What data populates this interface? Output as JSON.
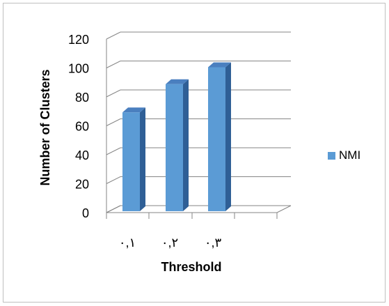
{
  "chart_data": {
    "type": "bar",
    "style": "3d-column",
    "categories": [
      "٠,١",
      "٠,٢",
      "٠,٣"
    ],
    "series": [
      {
        "name": "NMI",
        "values": [
          70,
          90,
          102
        ],
        "color": "#5b9bd5"
      }
    ],
    "xlabel": "Threshold",
    "ylabel": "Number of Clusters",
    "ylim": [
      0,
      120
    ],
    "yticks": [
      "0",
      "20",
      "40",
      "60",
      "80",
      "100",
      "120"
    ],
    "grid": true,
    "legend": "right"
  }
}
